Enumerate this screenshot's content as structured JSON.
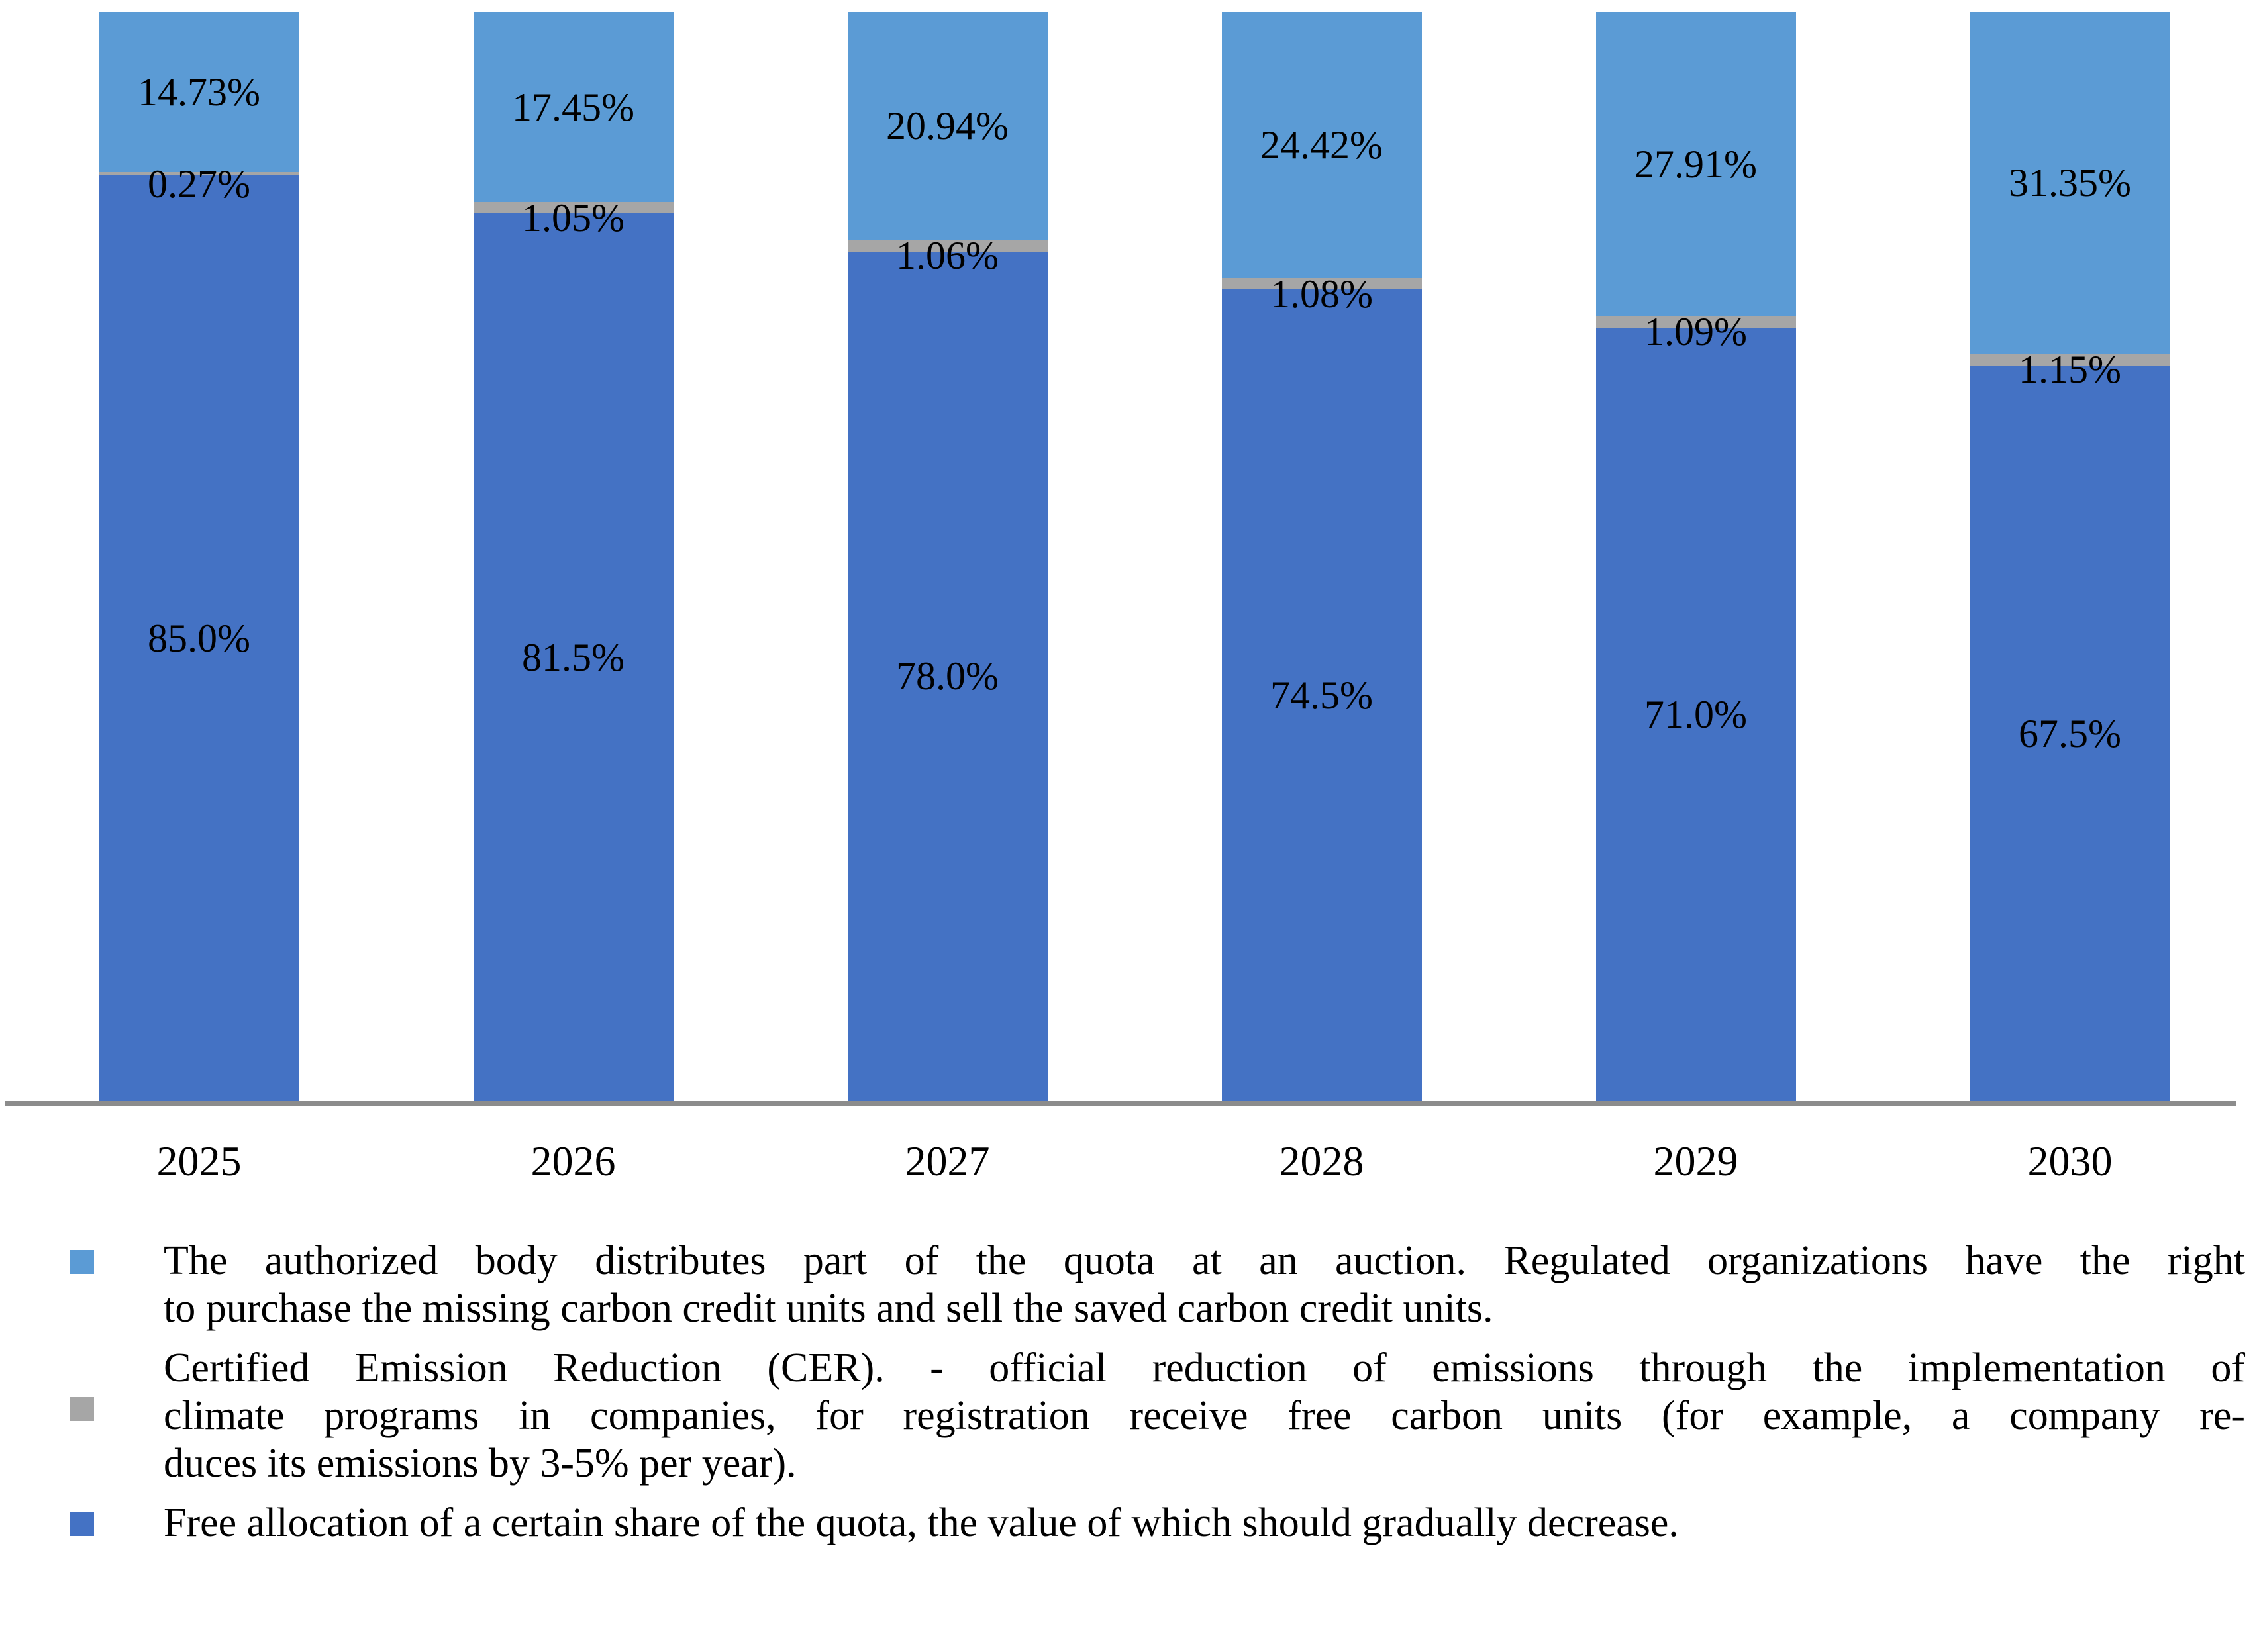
{
  "colors": {
    "auction_blue": "#5B9BD5",
    "cer_gray": "#A6A6A6",
    "free_blue": "#4472C4",
    "axis_line": "#8C8C8C",
    "label_text": "#000000"
  },
  "chart_data": {
    "type": "bar",
    "subtype": "stacked-100-percent",
    "title": "",
    "xlabel": "",
    "ylabel": "",
    "ylim": [
      0,
      100
    ],
    "grid": false,
    "legend_position": "bottom",
    "categories": [
      "2025",
      "2026",
      "2027",
      "2028",
      "2029",
      "2030"
    ],
    "series": [
      {
        "name": "auction-share",
        "color": "#5B9BD5",
        "values": [
          14.73,
          17.45,
          20.94,
          24.42,
          27.91,
          31.35
        ],
        "labels": [
          "14.73%",
          "17.45%",
          "20.94%",
          "24.42%",
          "27.91%",
          "31.35%"
        ]
      },
      {
        "name": "cer",
        "color": "#A6A6A6",
        "values": [
          0.27,
          1.05,
          1.06,
          1.08,
          1.09,
          1.15
        ],
        "labels": [
          "0.27%",
          "1.05%",
          "1.06%",
          "1.08%",
          "1.09%",
          "1.15%"
        ]
      },
      {
        "name": "free-allocation",
        "color": "#4472C4",
        "values": [
          85.0,
          81.5,
          78.0,
          74.5,
          71.0,
          67.5
        ],
        "labels": [
          "85.0%",
          "81.5%",
          "78.0%",
          "74.5%",
          "71.0%",
          "67.5%"
        ]
      }
    ]
  },
  "legend": {
    "items": [
      {
        "name": "auction-share",
        "color": "#5B9BD5",
        "lines": [
          "The authorized body distributes part of the quota at an auction. Regulated organizations have the right",
          "to purchase the missing carbon credit units and sell the saved carbon credit units."
        ]
      },
      {
        "name": "cer",
        "color": "#A6A6A6",
        "lines": [
          "Certified Emission Reduction (CER). - official reduction of emissions through the implementation of",
          "climate programs in companies, for registration receive free carbon units (for example, a company re-",
          "duces its emissions by 3-5% per year)."
        ]
      },
      {
        "name": "free-allocation",
        "color": "#4472C4",
        "lines": [
          "Free allocation of a certain share of the quota, the value of which should gradually decrease."
        ]
      }
    ]
  }
}
